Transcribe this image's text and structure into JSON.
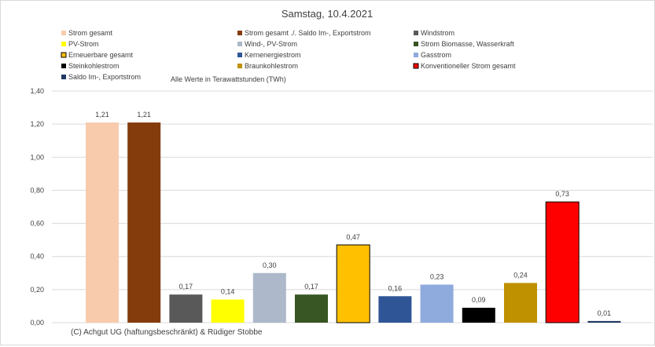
{
  "chart_data": {
    "type": "bar",
    "title": "Samstag, 10.4.2021",
    "note": "Alle Werte in Terawattstunden (TWh)",
    "footer": "(C) Achgut UG (haftungsbeschränkt) & Rüdiger Stobbe",
    "ylim": [
      0,
      1.4
    ],
    "yticks": [
      "0,00",
      "0,20",
      "0,40",
      "0,60",
      "0,80",
      "1,00",
      "1,20",
      "1,40"
    ],
    "grid": true,
    "legend_position": "top",
    "categories": [
      "Strom gesamt",
      "Strom gesamt ./. Saldo Im-, Exportstrom",
      "Windstrom",
      "PV-Strom",
      "Wind-, PV-Strom",
      "Strom Biomasse, Wasserkraft",
      "Erneuerbare gesamt",
      "Kernenergiestrom",
      "Gasstrom",
      "Steinkohlestrom",
      "Braunkohlestrom",
      "Konventioneller Strom gesamt",
      "Saldo Im-, Exportstrom"
    ],
    "values": [
      1.21,
      1.21,
      0.17,
      0.14,
      0.3,
      0.17,
      0.47,
      0.16,
      0.23,
      0.09,
      0.24,
      0.73,
      0.01
    ],
    "labels": [
      "1,21",
      "1,21",
      "0,17",
      "0,14",
      "0,30",
      "0,17",
      "0,47",
      "0,16",
      "0,23",
      "0,09",
      "0,24",
      "0,73",
      "0,01"
    ],
    "colors": [
      "#f8cbad",
      "#843c0c",
      "#595959",
      "#ffff00",
      "#adb9ca",
      "#375623",
      "#ffc000",
      "#2f5597",
      "#8faadc",
      "#000000",
      "#bf9000",
      "#ff0000",
      "#1f3864"
    ],
    "outlined": [
      false,
      false,
      false,
      false,
      false,
      false,
      true,
      false,
      false,
      false,
      false,
      true,
      false
    ]
  }
}
